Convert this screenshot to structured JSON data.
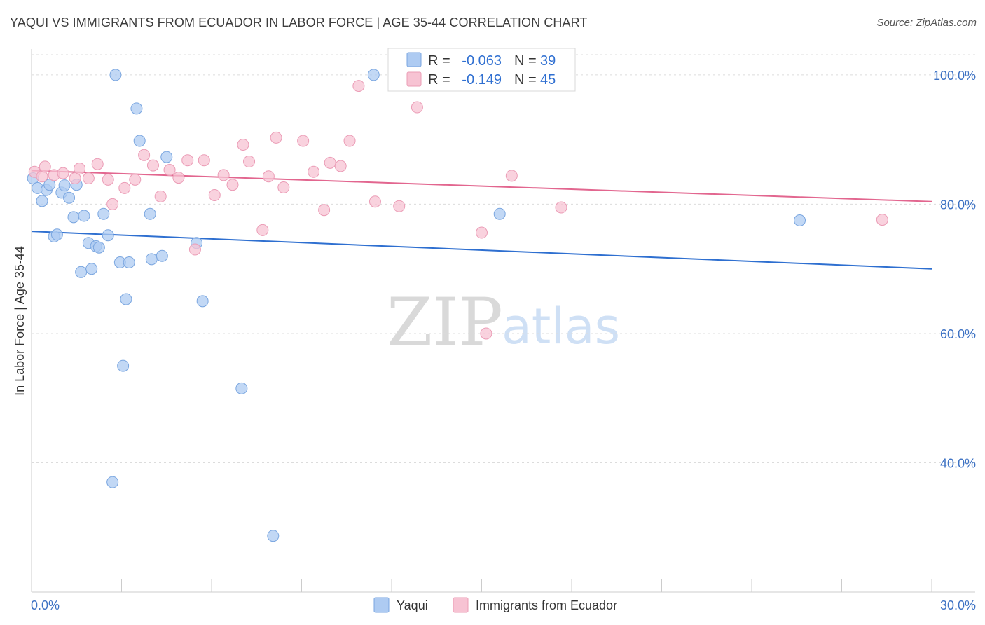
{
  "header": {
    "title": "YAQUI VS IMMIGRANTS FROM ECUADOR IN LABOR FORCE | AGE 35-44 CORRELATION CHART",
    "source": "Source: ZipAtlas.com"
  },
  "watermark": {
    "zip": "ZIP",
    "atlas": "atlas"
  },
  "colors": {
    "yaqui_fill": "#aecbf2",
    "yaqui_stroke": "#7aa6e0",
    "yaqui_line": "#2e6fd0",
    "ecuador_fill": "#f7c3d3",
    "ecuador_stroke": "#eb9cb6",
    "ecuador_line": "#e2668f",
    "axis_text": "#3d72c4",
    "grid": "#dcdcdc"
  },
  "chart_data": {
    "type": "scatter",
    "xlabel": "",
    "ylabel": "In Labor Force | Age 35-44",
    "xlim": [
      0,
      30
    ],
    "ylim": [
      20,
      104
    ],
    "x_tick_labels": [
      "0.0%",
      "30.0%"
    ],
    "y_ticks": [
      40,
      60,
      80,
      100
    ],
    "y_tick_labels": [
      "40.0%",
      "60.0%",
      "80.0%",
      "100.0%"
    ],
    "legend": {
      "position": "top-center",
      "rows": [
        {
          "r_label": "R =",
          "r_value": "-0.063",
          "n_label": "N =",
          "n_value": "39"
        },
        {
          "r_label": "R =",
          "r_value": "-0.149",
          "n_label": "N =",
          "n_value": "45"
        }
      ]
    },
    "bottom_legend": [
      "Yaqui",
      "Immigrants from Ecuador"
    ],
    "series": [
      {
        "name": "Yaqui",
        "trend": {
          "x": [
            0,
            30
          ],
          "y": [
            75.8,
            70.0
          ]
        },
        "points": [
          [
            0.05,
            84.0
          ],
          [
            0.2,
            82.5
          ],
          [
            0.35,
            80.5
          ],
          [
            0.5,
            82.2
          ],
          [
            0.6,
            83.0
          ],
          [
            0.75,
            75.0
          ],
          [
            0.85,
            75.3
          ],
          [
            1.0,
            81.8
          ],
          [
            1.1,
            82.9
          ],
          [
            1.25,
            81.0
          ],
          [
            1.4,
            78.0
          ],
          [
            1.5,
            83.0
          ],
          [
            1.65,
            69.5
          ],
          [
            1.75,
            78.2
          ],
          [
            1.9,
            74.0
          ],
          [
            2.0,
            70.0
          ],
          [
            2.15,
            73.5
          ],
          [
            2.25,
            73.3
          ],
          [
            2.4,
            78.5
          ],
          [
            2.55,
            75.2
          ],
          [
            2.8,
            100.0
          ],
          [
            2.95,
            71.0
          ],
          [
            3.05,
            55.0
          ],
          [
            3.15,
            65.3
          ],
          [
            3.25,
            71.0
          ],
          [
            2.7,
            37.0
          ],
          [
            3.5,
            94.8
          ],
          [
            3.6,
            89.8
          ],
          [
            3.95,
            78.5
          ],
          [
            4.0,
            71.5
          ],
          [
            4.35,
            72.0
          ],
          [
            4.5,
            87.3
          ],
          [
            5.5,
            74.0
          ],
          [
            5.7,
            65.0
          ],
          [
            7.0,
            51.5
          ],
          [
            8.05,
            28.7
          ],
          [
            11.4,
            100.0
          ],
          [
            15.6,
            78.5
          ],
          [
            25.6,
            77.5
          ]
        ]
      },
      {
        "name": "Immigrants from Ecuador",
        "trend": {
          "x": [
            0,
            30
          ],
          "y": [
            85.2,
            80.4
          ]
        },
        "points": [
          [
            0.1,
            85.0
          ],
          [
            0.35,
            84.3
          ],
          [
            0.45,
            85.8
          ],
          [
            0.75,
            84.5
          ],
          [
            1.05,
            84.8
          ],
          [
            1.45,
            84.0
          ],
          [
            1.6,
            85.5
          ],
          [
            1.9,
            84.0
          ],
          [
            2.2,
            86.2
          ],
          [
            2.55,
            83.8
          ],
          [
            2.7,
            80.0
          ],
          [
            3.1,
            82.5
          ],
          [
            3.45,
            83.8
          ],
          [
            3.75,
            87.6
          ],
          [
            4.05,
            86.0
          ],
          [
            4.3,
            81.2
          ],
          [
            4.6,
            85.3
          ],
          [
            4.9,
            84.1
          ],
          [
            5.2,
            86.8
          ],
          [
            5.45,
            73.0
          ],
          [
            5.75,
            86.8
          ],
          [
            6.1,
            81.4
          ],
          [
            6.4,
            84.5
          ],
          [
            6.7,
            83.0
          ],
          [
            7.05,
            89.2
          ],
          [
            7.25,
            86.6
          ],
          [
            7.7,
            76.0
          ],
          [
            7.9,
            84.3
          ],
          [
            8.15,
            90.3
          ],
          [
            8.4,
            82.6
          ],
          [
            9.05,
            89.8
          ],
          [
            9.4,
            85.0
          ],
          [
            9.75,
            79.1
          ],
          [
            9.95,
            86.4
          ],
          [
            10.3,
            85.9
          ],
          [
            10.6,
            89.8
          ],
          [
            10.9,
            98.3
          ],
          [
            11.45,
            80.4
          ],
          [
            12.25,
            79.7
          ],
          [
            12.85,
            95.0
          ],
          [
            15.0,
            75.6
          ],
          [
            15.15,
            60.0
          ],
          [
            16.0,
            84.4
          ],
          [
            17.65,
            79.5
          ],
          [
            28.35,
            77.6
          ]
        ]
      }
    ]
  }
}
